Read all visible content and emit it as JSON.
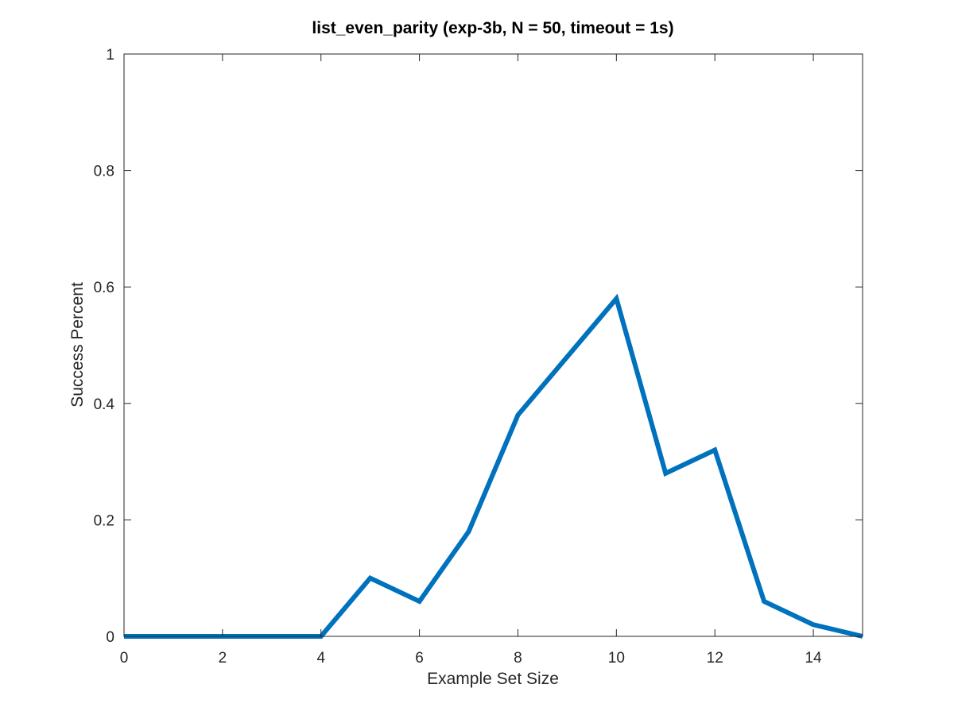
{
  "chart_data": {
    "type": "line",
    "title": "list_even_parity (exp-3b, N = 50, timeout = 1s)",
    "xlabel": "Example Set Size",
    "ylabel": "Success Percent",
    "xlim": [
      0,
      15
    ],
    "ylim": [
      0,
      1
    ],
    "xticks": [
      0,
      2,
      4,
      6,
      8,
      10,
      12,
      14
    ],
    "xtick_labels": [
      "0",
      "2",
      "4",
      "6",
      "8",
      "10",
      "12",
      "14"
    ],
    "yticks": [
      0,
      0.2,
      0.4,
      0.6,
      0.8,
      1
    ],
    "ytick_labels": [
      "0",
      "0.2",
      "0.4",
      "0.6",
      "0.8",
      "1"
    ],
    "grid": false,
    "box": true,
    "series": [
      {
        "color": "#0072BD",
        "x": [
          0,
          1,
          2,
          3,
          4,
          5,
          6,
          7,
          8,
          9,
          10,
          11,
          12,
          13,
          14,
          15
        ],
        "y": [
          0,
          0,
          0,
          0,
          0,
          0.1,
          0.06,
          0.18,
          0.38,
          0.48,
          0.58,
          0.28,
          0.32,
          0.06,
          0.02,
          0
        ]
      }
    ],
    "colors": {
      "axis": "#262626",
      "background": "#ffffff"
    }
  }
}
